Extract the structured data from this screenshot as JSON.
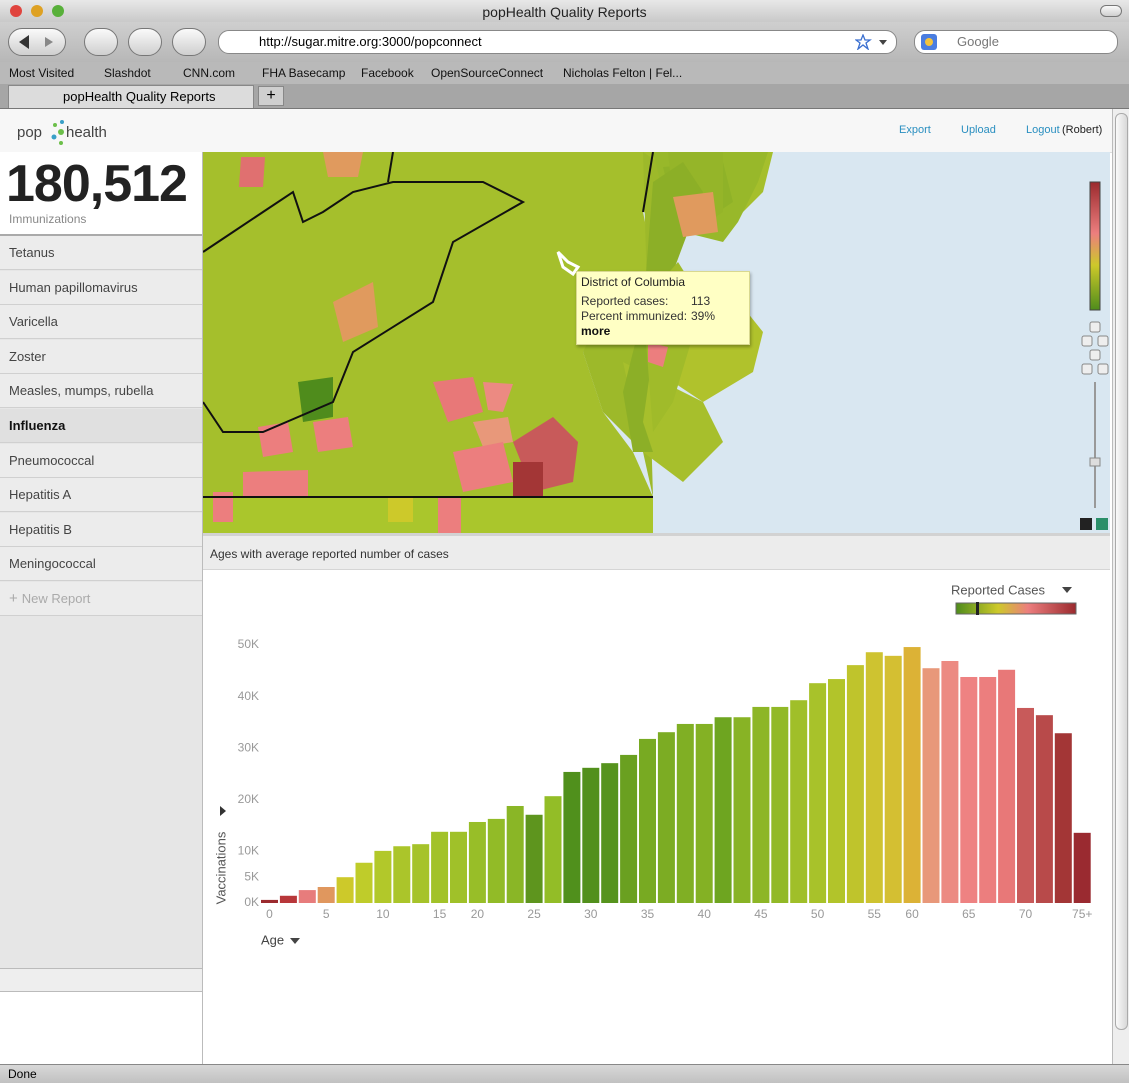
{
  "browser": {
    "window_title": "popHealth Quality Reports",
    "url": "http://sugar.mitre.org:3000/popconnect",
    "search_placeholder": "Google",
    "bookmarks": [
      "Most Visited",
      "Slashdot",
      "CNN.com",
      "FHA Basecamp",
      "Facebook",
      "OpenSourceConnect",
      "Nicholas Felton | Fel..."
    ],
    "tab_title": "popHealth Quality Reports",
    "status": "Done"
  },
  "header": {
    "logo": [
      "pop",
      "health"
    ],
    "links": [
      "Export",
      "Upload",
      "Logout"
    ],
    "user": "(Robert)"
  },
  "summary": {
    "count": "180,512",
    "label": "Immunizations"
  },
  "sidebar": {
    "items": [
      "Tetanus",
      "Human papillomavirus",
      "Varicella",
      "Zoster",
      "Measles, mumps, rubella",
      "Influenza",
      "Pneumococcal",
      "Hepatitis A",
      "Hepatitis B",
      "Meningococcal"
    ],
    "selected": 5,
    "new_report": "New Report"
  },
  "map_tooltip": {
    "title": "District of Columbia",
    "rows": [
      {
        "label": "Reported cases:",
        "value": "113"
      },
      {
        "label": "Percent immunized:",
        "value": "39%"
      }
    ],
    "more": "more"
  },
  "panel_title": "Ages with average reported number of cases",
  "chart_data": {
    "type": "bar",
    "y_label": "Vaccinations",
    "x_label": "Age",
    "legend_title": "Reported Cases",
    "categories": [
      "0",
      null,
      null,
      "5",
      null,
      null,
      "10",
      null,
      null,
      "15",
      null,
      "20",
      null,
      null,
      "25",
      null,
      null,
      "30",
      null,
      null,
      "35",
      null,
      null,
      "40",
      null,
      null,
      "45",
      null,
      null,
      "50",
      null,
      null,
      "55",
      null,
      "60",
      null,
      null,
      "65",
      null,
      null,
      "70",
      null,
      null,
      "75+"
    ],
    "values": [
      0.6,
      1.4,
      2.5,
      3.1,
      5,
      7.8,
      10.1,
      11,
      11.4,
      13.8,
      13.8,
      15.7,
      16.3,
      18.8,
      17.1,
      20.7,
      25.4,
      26.2,
      27.1,
      28.7,
      31.8,
      33.1,
      34.7,
      34.7,
      36,
      36,
      38,
      38,
      39.3,
      42.6,
      43.4,
      46.1,
      48.6,
      47.9,
      49.6,
      45.5,
      46.9,
      43.8,
      43.8,
      45.2,
      37.8,
      36.4,
      32.9,
      13.6
    ],
    "colors": [
      "#9b2a2e",
      "#b8373a",
      "#e77c7c",
      "#e0975e",
      "#cdc92a",
      "#bfcc2a",
      "#b2c82a",
      "#abc52a",
      "#a6c32a",
      "#a2c229",
      "#a0c129",
      "#98be28",
      "#92bb27",
      "#8ab626",
      "#5e951e",
      "#93bd27",
      "#50901c",
      "#52901c",
      "#56931d",
      "#6aa020",
      "#78aa22",
      "#7cac23",
      "#80af24",
      "#84b124",
      "#6ea520",
      "#88b325",
      "#8db626",
      "#92b927",
      "#a0bf29",
      "#a8c22a",
      "#b2c42a",
      "#bfc42c",
      "#cec330",
      "#d4bf32",
      "#dcb236",
      "#e8987a",
      "#ec8a82",
      "#ee8282",
      "#ec7e7e",
      "#e87878",
      "#c85a5a",
      "#b84a4a",
      "#a33636",
      "#9a2a30"
    ],
    "ylim": [
      0,
      50
    ],
    "yticks": [
      {
        "value": 0,
        "label": "0K"
      },
      {
        "value": 5,
        "label": "5K"
      },
      {
        "value": 10,
        "label": "10K"
      },
      {
        "value": 20,
        "label": "20K"
      },
      {
        "value": 30,
        "label": "30K"
      },
      {
        "value": 40,
        "label": "40K"
      },
      {
        "value": 50,
        "label": "50K"
      }
    ],
    "grid": false
  }
}
